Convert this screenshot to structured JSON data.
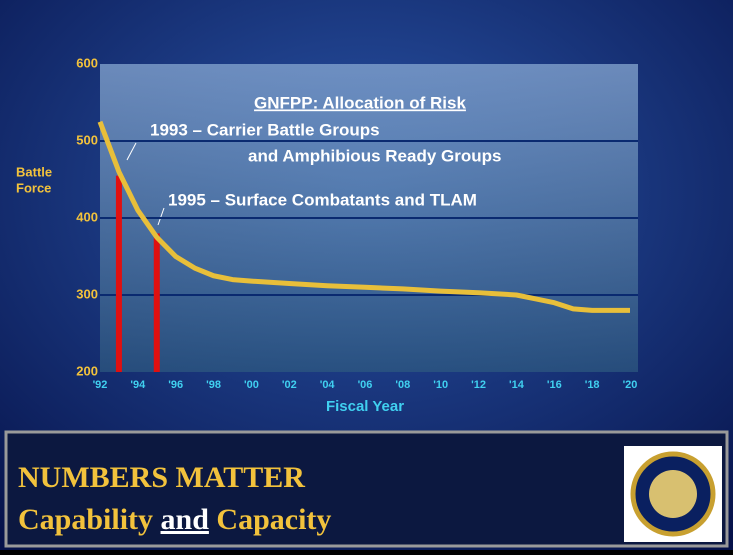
{
  "chart_data": {
    "type": "line",
    "title": "GNFPP: Allocation of Risk",
    "y_label_lines": [
      "Battle",
      "Force"
    ],
    "x_label": "Fiscal Year",
    "annotations": [
      "1993 – Carrier Battle Groups",
      "and Amphibious Ready Groups",
      "1995 – Surface Combatants and TLAM"
    ],
    "x": [
      1992,
      1993,
      1994,
      1995,
      1996,
      1997,
      1998,
      1999,
      2000,
      2002,
      2004,
      2006,
      2008,
      2010,
      2012,
      2014,
      2015,
      2016,
      2017,
      2018,
      2020
    ],
    "series": [
      {
        "color": "#e8bf3a",
        "values": [
          525,
          460,
          410,
          375,
          350,
          335,
          325,
          320,
          318,
          315,
          312,
          310,
          308,
          305,
          303,
          300,
          295,
          290,
          282,
          280,
          280
        ]
      }
    ],
    "markers": {
      "x": [
        1993,
        1995
      ],
      "values": [
        455,
        380
      ],
      "color": "#e01010"
    },
    "xlim": [
      1992,
      2020
    ],
    "xticks": [
      {
        "value": 1992,
        "label": "'92"
      },
      {
        "value": 1994,
        "label": "'94"
      },
      {
        "value": 1996,
        "label": "'96"
      },
      {
        "value": 1998,
        "label": "'98"
      },
      {
        "value": 2000,
        "label": "'00"
      },
      {
        "value": 2002,
        "label": "'02"
      },
      {
        "value": 2004,
        "label": "'04"
      },
      {
        "value": 2006,
        "label": "'06"
      },
      {
        "value": 2008,
        "label": "'08"
      },
      {
        "value": 2010,
        "label": "'10"
      },
      {
        "value": 2012,
        "label": "'12"
      },
      {
        "value": 2014,
        "label": "'14"
      },
      {
        "value": 2016,
        "label": "'16"
      },
      {
        "value": 2018,
        "label": "'18"
      },
      {
        "value": 2020,
        "label": "'20"
      }
    ],
    "ylim": [
      200,
      600
    ],
    "yticks": [
      200,
      300,
      400,
      500,
      600
    ],
    "grid": true
  },
  "footer": {
    "title": "NUMBERS MATTER",
    "subtitle_parts": [
      "Capability",
      "and",
      "Capacity"
    ]
  }
}
